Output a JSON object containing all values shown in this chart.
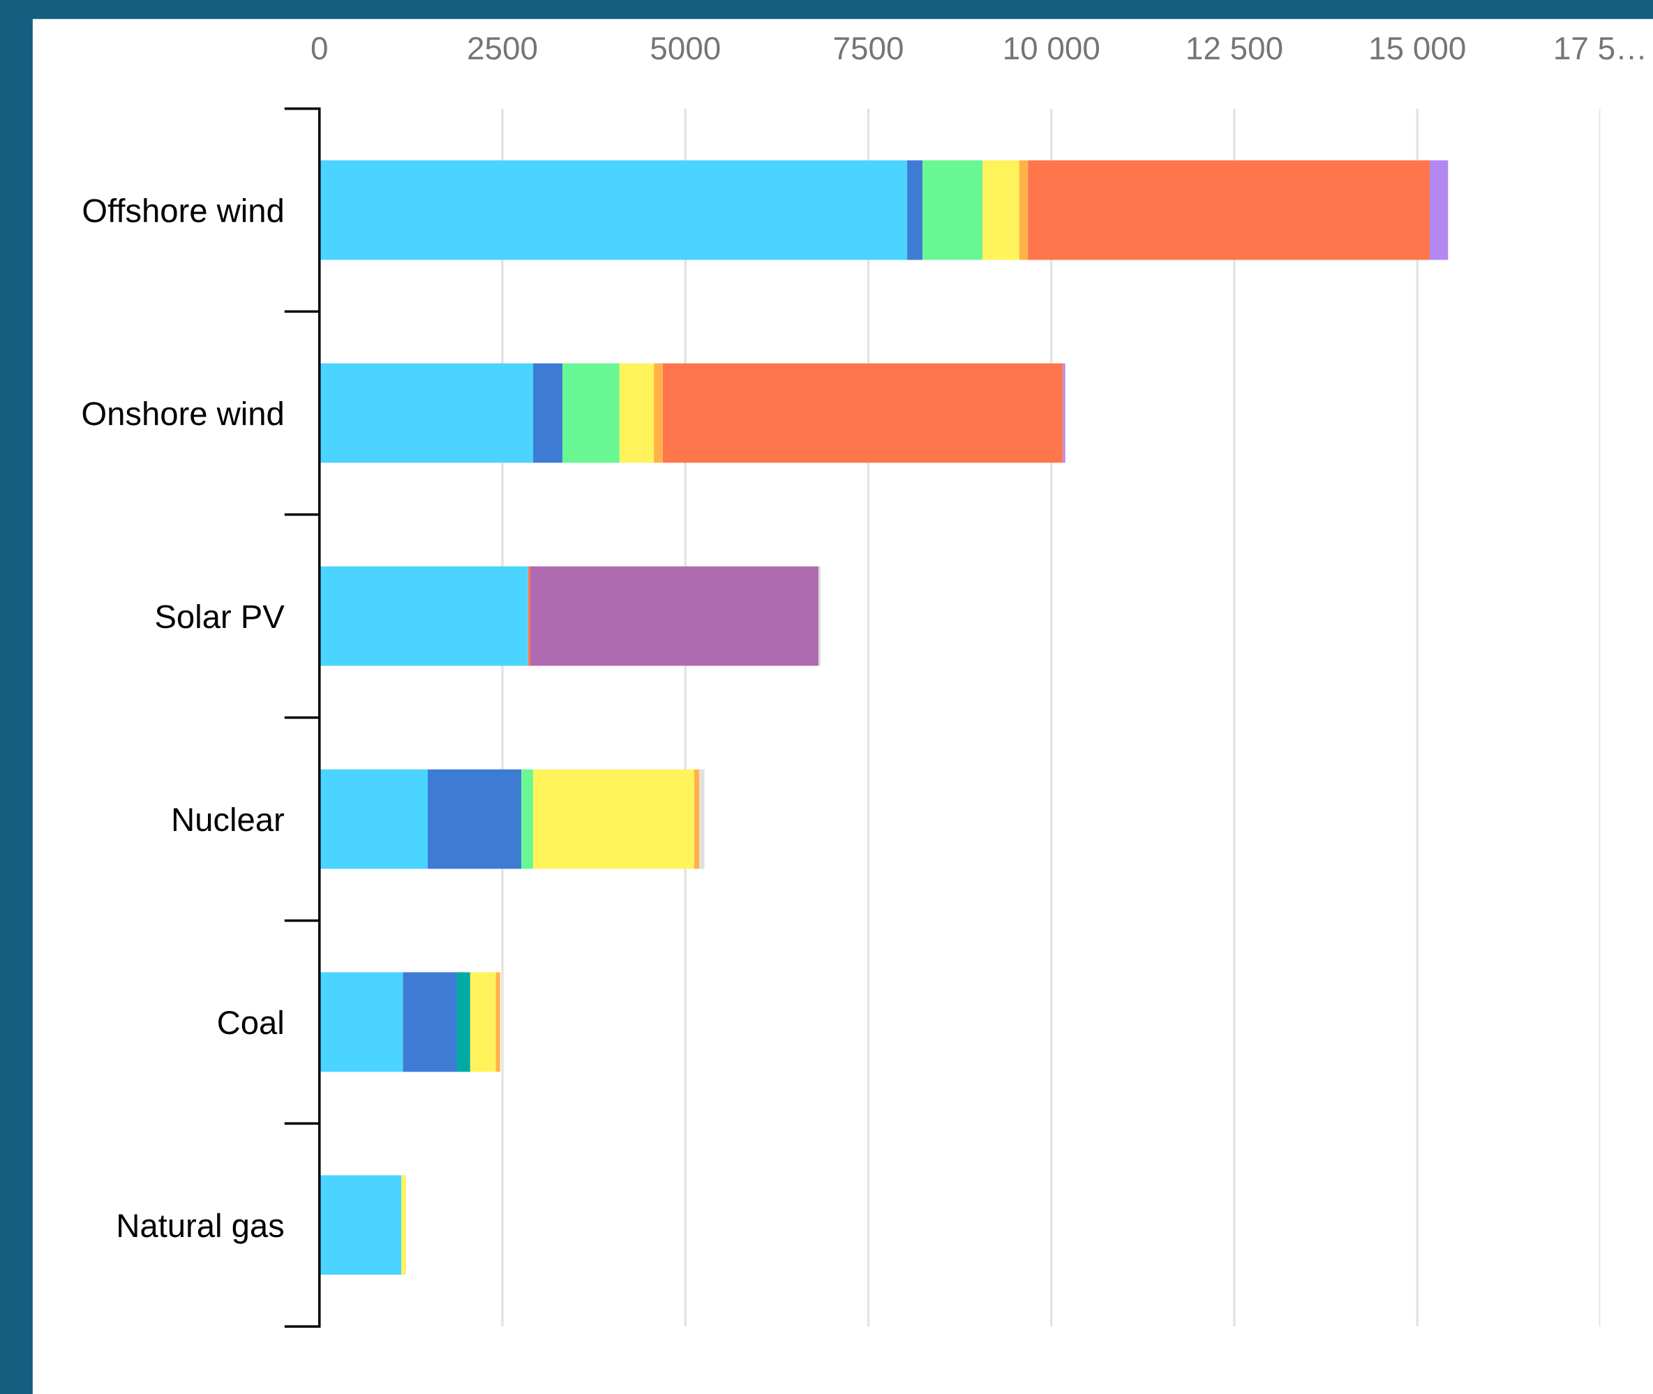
{
  "chart_data": {
    "type": "bar",
    "orientation": "horizontal",
    "stacked": true,
    "categories": [
      "Offshore wind",
      "Onshore wind",
      "Solar PV",
      "Nuclear",
      "Coal",
      "Natural gas"
    ],
    "series": [
      {
        "color": "#4ad4ff",
        "values": [
          8030,
          2920,
          2850,
          1480,
          1140,
          1120
        ]
      },
      {
        "color": "#3e7bd4",
        "values": [
          210,
          400,
          0,
          1280,
          740,
          0
        ]
      },
      {
        "color": "#69f794",
        "values": [
          820,
          780,
          0,
          160,
          0,
          0
        ]
      },
      {
        "color": "#00aba3",
        "values": [
          0,
          0,
          0,
          0,
          180,
          0
        ]
      },
      {
        "color": "#fff35c",
        "values": [
          500,
          470,
          0,
          2200,
          350,
          60
        ]
      },
      {
        "color": "#ffb347",
        "values": [
          120,
          120,
          0,
          70,
          60,
          0
        ]
      },
      {
        "color": "#ff764c",
        "values": [
          5490,
          5470,
          30,
          0,
          0,
          0
        ]
      },
      {
        "color": "#b388f0",
        "values": [
          250,
          30,
          0,
          0,
          0,
          0
        ]
      },
      {
        "color": "#b06bb0",
        "values": [
          0,
          0,
          3940,
          0,
          0,
          0
        ]
      },
      {
        "color": "#e0e0e0",
        "values": [
          0,
          0,
          30,
          70,
          0,
          0
        ]
      }
    ],
    "xlim": [
      0,
      17500
    ],
    "xticks": [
      0,
      2500,
      5000,
      7500,
      {
        "value": 10000,
        "label": "10 000"
      },
      {
        "value": 12500,
        "label": "12 500"
      },
      {
        "value": 15000,
        "label": "15 000"
      },
      {
        "value": 17500,
        "label": "17 5…"
      }
    ],
    "grid": "x",
    "legend": false
  }
}
